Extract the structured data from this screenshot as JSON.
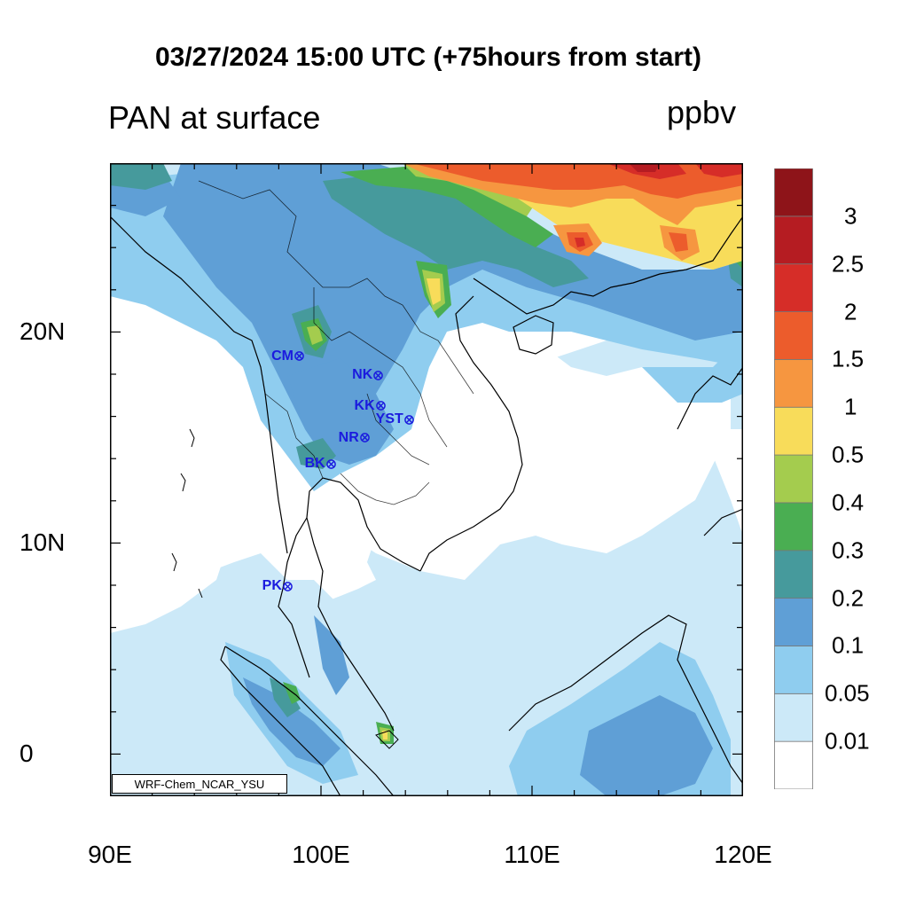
{
  "title": "03/27/2024 15:00 UTC (+75hours from start)",
  "left_subtitle": "PAN at surface",
  "right_subtitle": "ppbv",
  "credit": "WRF-Chem_NCAR_YSU",
  "x_axis": {
    "range": [
      90,
      120
    ],
    "ticks": [
      {
        "value": 90,
        "label": "90E"
      },
      {
        "value": 100,
        "label": "100E"
      },
      {
        "value": 110,
        "label": "110E"
      },
      {
        "value": 120,
        "label": "120E"
      }
    ]
  },
  "y_axis": {
    "range": [
      -2,
      28
    ],
    "ticks": [
      {
        "value": 0,
        "label": "0"
      },
      {
        "value": 10,
        "label": "10N"
      },
      {
        "value": 20,
        "label": "20N"
      }
    ]
  },
  "colorbar": {
    "levels": [
      "0.01",
      "0.05",
      "0.1",
      "0.2",
      "0.3",
      "0.4",
      "0.5",
      "1",
      "1.5",
      "2",
      "2.5",
      "3"
    ],
    "colors": [
      "#ffffff",
      "#cce9f8",
      "#8fcdef",
      "#5f9fd6",
      "#469a9c",
      "#4aae52",
      "#a4cc4e",
      "#f8dc5a",
      "#f69640",
      "#ec5c2c",
      "#d62d28",
      "#b51c22",
      "#8e1419"
    ]
  },
  "stations": [
    {
      "name": "CM",
      "lon": 98.95,
      "lat": 18.8
    },
    {
      "name": "NK",
      "lon": 102.7,
      "lat": 17.9
    },
    {
      "name": "KK",
      "lon": 102.8,
      "lat": 16.45
    },
    {
      "name": "YST",
      "lon": 104.15,
      "lat": 15.8
    },
    {
      "name": "NR",
      "lon": 102.05,
      "lat": 14.95
    },
    {
      "name": "BK",
      "lon": 100.45,
      "lat": 13.7
    },
    {
      "name": "PK",
      "lon": 98.4,
      "lat": 7.9
    }
  ]
}
